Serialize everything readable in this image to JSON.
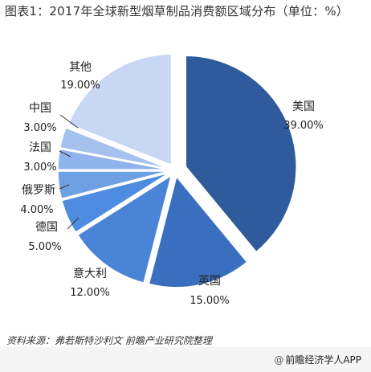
{
  "chart_data": {
    "type": "pie",
    "title": "图表1：2017年全球新型烟草制品消费额区域分布（单位：%）",
    "exploded": true,
    "slices": [
      {
        "name": "美国",
        "value": 39.0,
        "label": "39.00%",
        "color": "#2f5a9c"
      },
      {
        "name": "英国",
        "value": 15.0,
        "label": "15.00%",
        "color": "#3a6fbf"
      },
      {
        "name": "意大利",
        "value": 12.0,
        "label": "12.00%",
        "color": "#4a84d6"
      },
      {
        "name": "德国",
        "value": 5.0,
        "label": "5.00%",
        "color": "#4d8ce0"
      },
      {
        "name": "俄罗斯",
        "value": 4.0,
        "label": "4.00%",
        "color": "#6fa0e3"
      },
      {
        "name": "法国",
        "value": 3.0,
        "label": "3.00%",
        "color": "#8fb3ea"
      },
      {
        "name": "中国",
        "value": 3.0,
        "label": "3.00%",
        "color": "#a5c1ee"
      },
      {
        "name": "其他",
        "value": 19.0,
        "label": "19.00%",
        "color": "#c7d7f4"
      }
    ]
  },
  "source": "资料来源：弗若斯特沙利文  前瞻产业研究院整理",
  "brand": {
    "at_icon": "@",
    "name": "前瞻经济学人APP"
  }
}
